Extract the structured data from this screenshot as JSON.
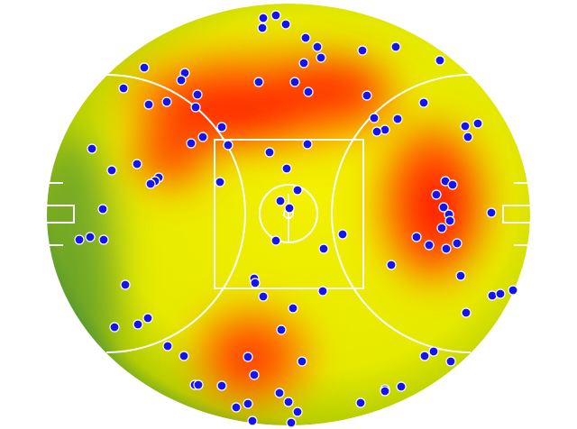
{
  "chart_data": {
    "type": "scatter",
    "color": "#1414f0",
    "xlim": [
      52,
      588
    ],
    "ylim": [
      472,
      4
    ],
    "x": [
      292,
      306,
      317,
      291,
      339,
      352,
      356,
      337,
      402,
      439,
      488,
      160,
      205,
      201,
      137,
      287,
      327,
      342,
      407,
      219,
      185,
      165,
      217,
      470,
      415,
      441,
      427,
      418,
      516,
      530,
      519,
      246,
      225,
      212,
      253,
      341,
      102,
      299,
      124,
      152,
      176,
      172,
      167,
      318,
      244,
      494,
      502,
      484,
      330,
      311,
      492,
      321,
      498,
      114,
      545,
      499,
      490,
      462,
      88,
      100,
      115,
      476,
      495,
      507,
      306,
      380,
      359,
      434,
      282,
      283,
      511,
      139,
      358,
      292,
      546,
      555,
      569,
      325,
      517,
      164,
      153,
      127,
      312,
      186,
      204,
      275,
      481,
      471,
      500,
      335,
      282,
      216,
      220,
      246,
      427,
      427,
      445,
      310,
      320,
      400,
      275,
      262,
      330,
      280,
      323
    ],
    "y": [
      20,
      17,
      27,
      31,
      42,
      52,
      64,
      70,
      56,
      52,
      67,
      75,
      81,
      89,
      98,
      91,
      91,
      102,
      106,
      105,
      113,
      116,
      119,
      114,
      131,
      132,
      144,
      146,
      140,
      137,
      152,
      141,
      152,
      159,
      161,
      160,
      165,
      169,
      189,
      182,
      197,
      201,
      204,
      187,
      202,
      201,
      205,
      216,
      211,
      223,
      230,
      231,
      238,
      232,
      236,
      245,
      253,
      263,
      266,
      263,
      266,
      272,
      276,
      270,
      267,
      260,
      276,
      294,
      309,
      314,
      306,
      316,
      323,
      329,
      328,
      326,
      322,
      342,
      347,
      353,
      360,
      363,
      366,
      384,
      395,
      396,
      390,
      395,
      401,
      401,
      416,
      427,
      427,
      428,
      432,
      434,
      429,
      436,
      446,
      447,
      448,
      452,
      457,
      467,
      469
    ]
  }
}
